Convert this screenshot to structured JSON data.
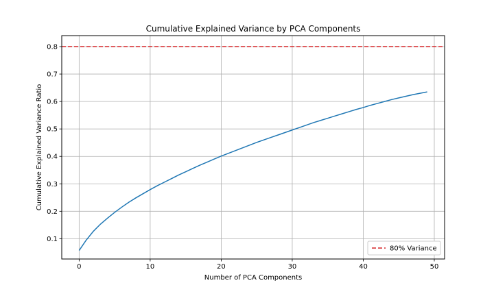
{
  "chart_data": {
    "type": "line",
    "title": "Cumulative Explained Variance by PCA Components",
    "xlabel": "Number of PCA Components",
    "ylabel": "Cumulative Explained Variance Ratio",
    "xlim": [
      -2.45,
      51.45
    ],
    "ylim": [
      0.026,
      0.84
    ],
    "x_ticks": [
      0,
      10,
      20,
      30,
      40,
      50
    ],
    "y_ticks": [
      0.1,
      0.2,
      0.3,
      0.4,
      0.5,
      0.6,
      0.7,
      0.8
    ],
    "x_tick_labels": [
      "0",
      "10",
      "20",
      "30",
      "40",
      "50"
    ],
    "y_tick_labels": [
      "0.1",
      "0.2",
      "0.3",
      "0.4",
      "0.5",
      "0.6",
      "0.7",
      "0.8"
    ],
    "grid": true,
    "legend_position": "lower-right",
    "series": [
      {
        "name": "",
        "color": "#1f77b4",
        "x": [
          0,
          1,
          2,
          3,
          4,
          5,
          6,
          7,
          8,
          9,
          10,
          11,
          12,
          13,
          14,
          15,
          16,
          17,
          18,
          19,
          20,
          21,
          22,
          23,
          24,
          25,
          26,
          27,
          28,
          29,
          30,
          31,
          32,
          33,
          34,
          35,
          36,
          37,
          38,
          39,
          40,
          41,
          42,
          43,
          44,
          45,
          46,
          47,
          48,
          49
        ],
        "y": [
          0.057,
          0.095,
          0.127,
          0.153,
          0.175,
          0.196,
          0.215,
          0.233,
          0.249,
          0.264,
          0.279,
          0.293,
          0.306,
          0.319,
          0.332,
          0.344,
          0.356,
          0.368,
          0.379,
          0.39,
          0.401,
          0.411,
          0.421,
          0.431,
          0.441,
          0.451,
          0.46,
          0.469,
          0.478,
          0.487,
          0.496,
          0.505,
          0.514,
          0.523,
          0.531,
          0.539,
          0.547,
          0.555,
          0.563,
          0.571,
          0.578,
          0.586,
          0.593,
          0.6,
          0.607,
          0.613,
          0.619,
          0.625,
          0.63,
          0.635
        ]
      }
    ],
    "reference_lines": [
      {
        "orientation": "horizontal",
        "y": 0.8,
        "color": "#d62728",
        "style": "dashed",
        "label": "80% Variance"
      }
    ]
  }
}
